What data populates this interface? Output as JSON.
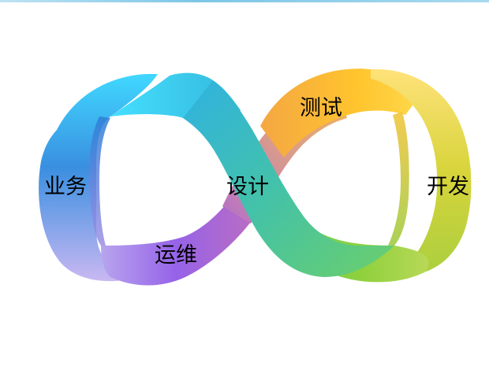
{
  "diagram": {
    "stages": {
      "business": "业务",
      "design": "设计",
      "test": "测试",
      "develop": "开发",
      "operations": "运维"
    },
    "colors": {
      "left_top": "#3fd6ff",
      "left_mid": "#2f7fdc",
      "left_bottom": "#9b6de6",
      "center_teal": "#3fbfb0",
      "right_top": "#ffc13a",
      "right_side": "#d4d23a",
      "right_bottom": "#8fd13d"
    }
  }
}
